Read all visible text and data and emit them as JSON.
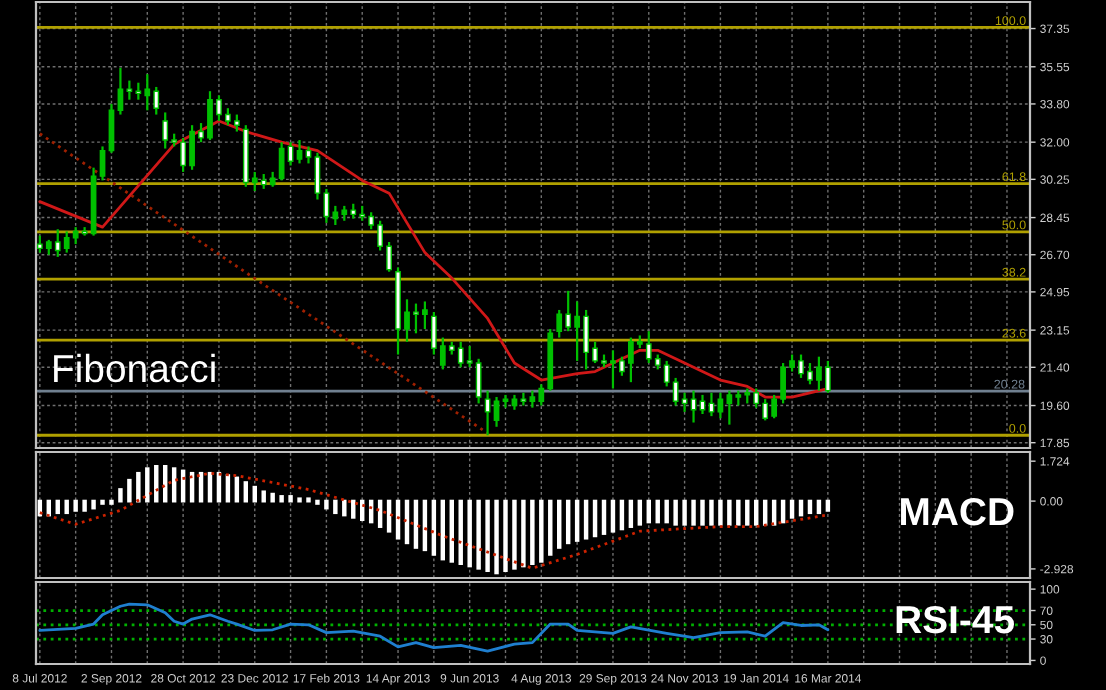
{
  "chart_data": [
    {
      "type": "candlestick",
      "annotations": [
        "Fibonacci",
        {
          "text": "100.0",
          "x": "2014-08-18",
          "y": 37.4
        },
        {
          "text": "61.8",
          "x": "2014-08-18",
          "y": 30.05
        },
        {
          "text": "50.0",
          "x": "2014-08-18",
          "y": 27.78
        },
        {
          "text": "38.2",
          "x": "2014-08-18",
          "y": 25.55
        },
        {
          "text": "23.6",
          "x": "2014-08-18",
          "y": 22.68
        },
        {
          "text": "0.0",
          "x": "2014-08-18",
          "y": 18.2
        }
      ],
      "x": [
        "2012-07-08",
        "2012-07-15",
        "2012-07-22",
        "2012-07-29",
        "2012-08-05",
        "2012-08-12",
        "2012-08-19",
        "2012-08-26",
        "2012-09-02",
        "2012-09-09",
        "2012-09-16",
        "2012-09-23",
        "2012-09-30",
        "2012-10-07",
        "2012-10-14",
        "2012-10-21",
        "2012-10-28",
        "2012-11-04",
        "2012-11-11",
        "2012-11-18",
        "2012-11-25",
        "2012-12-02",
        "2012-12-09",
        "2012-12-16",
        "2012-12-23",
        "2012-12-30",
        "2013-01-06",
        "2013-01-13",
        "2013-01-20",
        "2013-01-27",
        "2013-02-03",
        "2013-02-10",
        "2013-02-17",
        "2013-02-24",
        "2013-03-03",
        "2013-03-10",
        "2013-03-17",
        "2013-03-24",
        "2013-03-31",
        "2013-04-07",
        "2013-04-14",
        "2013-04-21",
        "2013-04-28",
        "2013-05-05",
        "2013-05-12",
        "2013-05-19",
        "2013-05-26",
        "2013-06-02",
        "2013-06-09",
        "2013-06-16",
        "2013-06-23",
        "2013-06-30",
        "2013-07-07",
        "2013-07-14",
        "2013-07-21",
        "2013-07-28",
        "2013-08-04",
        "2013-08-11",
        "2013-08-18",
        "2013-08-25",
        "2013-09-01",
        "2013-09-08",
        "2013-09-15",
        "2013-09-22",
        "2013-09-29",
        "2013-10-06",
        "2013-10-13",
        "2013-10-20",
        "2013-10-27",
        "2013-11-03",
        "2013-11-10",
        "2013-11-17",
        "2013-11-24",
        "2013-12-01",
        "2013-12-08",
        "2013-12-15",
        "2013-12-22",
        "2013-12-29",
        "2014-01-05",
        "2014-01-12",
        "2014-01-19",
        "2014-01-26",
        "2014-02-02",
        "2014-02-09",
        "2014-02-16",
        "2014-02-23",
        "2014-03-02",
        "2014-03-09",
        "2014-03-16"
      ],
      "ohlc": [
        [
          27.2,
          27.6,
          26.8,
          27.0
        ],
        [
          27.0,
          27.4,
          26.7,
          27.3
        ],
        [
          27.3,
          27.9,
          26.6,
          26.9
        ],
        [
          27.0,
          27.8,
          26.8,
          27.5
        ],
        [
          27.5,
          28.0,
          27.2,
          27.8
        ],
        [
          27.8,
          28.0,
          27.6,
          27.7
        ],
        [
          27.7,
          30.8,
          27.6,
          30.4
        ],
        [
          30.4,
          31.8,
          30.2,
          31.6
        ],
        [
          31.6,
          33.8,
          31.5,
          33.5
        ],
        [
          33.5,
          35.5,
          33.3,
          34.5
        ],
        [
          34.5,
          34.9,
          34.0,
          34.4
        ],
        [
          34.4,
          34.8,
          34.0,
          34.3
        ],
        [
          34.2,
          35.2,
          33.5,
          34.5
        ],
        [
          34.4,
          34.6,
          33.3,
          33.6
        ],
        [
          33.0,
          33.4,
          31.7,
          32.1
        ],
        [
          32.1,
          32.4,
          31.8,
          32.0
        ],
        [
          32.0,
          32.2,
          30.6,
          30.9
        ],
        [
          30.9,
          32.8,
          30.7,
          32.5
        ],
        [
          32.5,
          32.9,
          32.0,
          32.2
        ],
        [
          32.2,
          34.4,
          32.1,
          34.0
        ],
        [
          34.0,
          34.2,
          33.0,
          33.3
        ],
        [
          33.3,
          33.6,
          32.8,
          33.0
        ],
        [
          33.0,
          33.3,
          32.5,
          32.8
        ],
        [
          32.6,
          32.8,
          29.9,
          30.1
        ],
        [
          30.1,
          30.6,
          29.7,
          30.3
        ],
        [
          30.2,
          30.5,
          29.8,
          30.0
        ],
        [
          30.0,
          30.6,
          29.9,
          30.3
        ],
        [
          30.3,
          32.0,
          30.2,
          31.7
        ],
        [
          31.8,
          32.0,
          30.9,
          31.1
        ],
        [
          31.2,
          32.1,
          31.0,
          31.6
        ],
        [
          31.6,
          31.8,
          31.0,
          31.3
        ],
        [
          31.3,
          31.5,
          29.3,
          29.6
        ],
        [
          29.6,
          29.8,
          28.2,
          28.5
        ],
        [
          28.4,
          29.0,
          28.1,
          28.7
        ],
        [
          28.6,
          29.0,
          28.3,
          28.8
        ],
        [
          28.8,
          29.1,
          28.4,
          28.6
        ],
        [
          28.6,
          29.0,
          28.3,
          28.5
        ],
        [
          28.5,
          28.7,
          27.9,
          28.1
        ],
        [
          28.1,
          28.3,
          26.9,
          27.1
        ],
        [
          27.1,
          27.3,
          25.9,
          26.0
        ],
        [
          25.9,
          26.1,
          22.0,
          23.2
        ],
        [
          23.2,
          24.6,
          22.6,
          24.0
        ],
        [
          24.0,
          24.4,
          23.0,
          23.9
        ],
        [
          23.9,
          24.5,
          23.2,
          24.1
        ],
        [
          23.8,
          24.0,
          22.0,
          22.3
        ],
        [
          21.5,
          22.8,
          21.3,
          22.4
        ],
        [
          22.4,
          22.6,
          22.0,
          22.2
        ],
        [
          22.3,
          22.6,
          21.4,
          21.6
        ],
        [
          21.7,
          22.4,
          21.4,
          21.6
        ],
        [
          21.6,
          21.8,
          19.7,
          20.0
        ],
        [
          19.9,
          20.3,
          18.2,
          19.3
        ],
        [
          18.9,
          20.0,
          18.6,
          19.8
        ],
        [
          19.8,
          20.1,
          19.5,
          19.9
        ],
        [
          19.6,
          20.1,
          19.4,
          19.9
        ],
        [
          19.9,
          20.2,
          19.6,
          19.8
        ],
        [
          19.8,
          20.3,
          19.5,
          20.0
        ],
        [
          19.8,
          20.6,
          19.6,
          20.4
        ],
        [
          20.4,
          23.2,
          20.3,
          23.0
        ],
        [
          23.1,
          24.1,
          22.8,
          23.9
        ],
        [
          23.9,
          25.0,
          23.1,
          23.3
        ],
        [
          23.3,
          24.5,
          21.7,
          23.8
        ],
        [
          23.8,
          24.1,
          21.3,
          22.1
        ],
        [
          22.3,
          22.6,
          21.6,
          21.7
        ],
        [
          21.7,
          22.0,
          21.4,
          21.6
        ],
        [
          21.6,
          22.2,
          20.4,
          21.7
        ],
        [
          21.7,
          21.9,
          21.0,
          21.2
        ],
        [
          21.6,
          22.8,
          20.7,
          22.6
        ],
        [
          22.5,
          22.9,
          22.3,
          22.6
        ],
        [
          22.5,
          23.1,
          21.6,
          21.8
        ],
        [
          21.8,
          22.0,
          21.3,
          21.5
        ],
        [
          21.5,
          21.7,
          20.5,
          20.7
        ],
        [
          20.7,
          20.9,
          19.6,
          19.8
        ],
        [
          19.9,
          20.2,
          19.3,
          19.7
        ],
        [
          19.9,
          20.3,
          18.8,
          19.4
        ],
        [
          19.8,
          20.1,
          19.2,
          19.4
        ],
        [
          19.7,
          20.2,
          19.1,
          19.3
        ],
        [
          19.3,
          20.2,
          19.0,
          19.9
        ],
        [
          19.7,
          20.3,
          18.7,
          20.1
        ],
        [
          20.0,
          20.3,
          19.6,
          20.1
        ],
        [
          20.1,
          20.4,
          19.7,
          20.2
        ],
        [
          20.2,
          20.4,
          19.5,
          19.7
        ],
        [
          19.7,
          19.9,
          18.9,
          19.0
        ],
        [
          19.1,
          20.1,
          19.0,
          19.9
        ],
        [
          19.9,
          21.6,
          19.7,
          21.4
        ],
        [
          21.4,
          22.0,
          21.2,
          21.7
        ],
        [
          21.7,
          22.0,
          20.9,
          21.1
        ],
        [
          21.2,
          21.6,
          20.6,
          20.8
        ],
        [
          20.8,
          21.9,
          20.3,
          21.4
        ],
        [
          21.4,
          21.7,
          20.2,
          20.3
        ]
      ],
      "colors": [
        "#ffffff",
        "#00c000",
        "#ffffff",
        "#00c000",
        "#00c000",
        "#ffffff",
        "#00c000",
        "#00c000",
        "#00c000",
        "#00c000",
        "#ffffff",
        "#ffffff",
        "#00c000",
        "#ffffff",
        "#ffffff",
        "#ffffff",
        "#ffffff",
        "#00c000",
        "#ffffff",
        "#00c000",
        "#ffffff",
        "#ffffff",
        "#ffffff",
        "#ffffff",
        "#00c000",
        "#ffffff",
        "#00c000",
        "#00c000",
        "#ffffff",
        "#00c000",
        "#ffffff",
        "#ffffff",
        "#ffffff",
        "#00c000",
        "#00c000",
        "#ffffff",
        "#ffffff",
        "#ffffff",
        "#ffffff",
        "#ffffff",
        "#ffffff",
        "#00c000",
        "#ffffff",
        "#00c000",
        "#ffffff",
        "#00c000",
        "#ffffff",
        "#ffffff",
        "#ffffff",
        "#ffffff",
        "#ffffff",
        "#00c000",
        "#00c000",
        "#00c000",
        "#ffffff",
        "#00c000",
        "#00c000",
        "#00c000",
        "#00c000",
        "#ffffff",
        "#00c000",
        "#ffffff",
        "#ffffff",
        "#ffffff",
        "#00c000",
        "#ffffff",
        "#00c000",
        "#00c000",
        "#ffffff",
        "#ffffff",
        "#ffffff",
        "#ffffff",
        "#ffffff",
        "#ffffff",
        "#ffffff",
        "#ffffff",
        "#00c000",
        "#00c000",
        "#00c000",
        "#00c000",
        "#ffffff",
        "#ffffff",
        "#00c000",
        "#00c000",
        "#00c000",
        "#ffffff",
        "#ffffff",
        "#00c000",
        "#ffffff"
      ],
      "series": [
        {
          "type": "line",
          "color": "#d01818",
          "line_style": "solid",
          "x": [
            "2012-07-08",
            "2012-08-26",
            "2012-10-21",
            "2012-11-25",
            "2012-12-16",
            "2013-01-13",
            "2013-02-10",
            "2013-03-17",
            "2013-04-07",
            "2013-05-05",
            "2013-05-26",
            "2013-06-23",
            "2013-07-14",
            "2013-08-04",
            "2013-09-01",
            "2013-09-15",
            "2013-10-20",
            "2013-11-03",
            "2013-11-24",
            "2013-12-22",
            "2014-01-12",
            "2014-01-26",
            "2014-02-16",
            "2014-03-16"
          ],
          "values": [
            29.2,
            28.0,
            31.9,
            33.0,
            32.5,
            32.0,
            31.6,
            30.2,
            29.6,
            26.8,
            25.6,
            23.7,
            21.6,
            20.8,
            21.1,
            21.2,
            22.2,
            22.2,
            21.6,
            20.8,
            20.5,
            20.0,
            20.0,
            20.4
          ]
        },
        {
          "type": "line",
          "color": "#a02000",
          "line_style": "dotted",
          "x": [
            "2012-07-08",
            "2012-12-30",
            "2013-06-23"
          ],
          "values": [
            32.4,
            25.3,
            18.3
          ]
        }
      ],
      "ref_lines": [
        {
          "axis": "y",
          "value": 37.4,
          "color": "#b0a000"
        },
        {
          "axis": "y",
          "value": 30.05,
          "color": "#b0a000"
        },
        {
          "axis": "y",
          "value": 27.78,
          "color": "#b0a000"
        },
        {
          "axis": "y",
          "value": 25.55,
          "color": "#b0a000"
        },
        {
          "axis": "y",
          "value": 22.68,
          "color": "#b0a000"
        },
        {
          "axis": "y",
          "value": 18.2,
          "color": "#b0a000"
        },
        {
          "axis": "y",
          "value": 20.28,
          "label": "20.28",
          "color": "#708090"
        }
      ],
      "xlim": [
        "2012-07-05",
        "2014-08-21"
      ],
      "xticks": [
        {
          "value": "2012-07-08",
          "label": null
        },
        {
          "value": "2012-08-05",
          "label": null
        },
        {
          "value": "2012-09-02",
          "label": null
        },
        {
          "value": "2012-09-30",
          "label": null
        },
        {
          "value": "2012-10-28",
          "label": null
        },
        {
          "value": "2012-11-25",
          "label": null
        },
        {
          "value": "2012-12-23",
          "label": null
        },
        {
          "value": "2013-01-20",
          "label": null
        },
        {
          "value": "2013-02-17",
          "label": null
        },
        {
          "value": "2013-03-17",
          "label": null
        },
        {
          "value": "2013-04-14",
          "label": null
        },
        {
          "value": "2013-05-12",
          "label": null
        },
        {
          "value": "2013-06-09",
          "label": null
        },
        {
          "value": "2013-07-07",
          "label": null
        },
        {
          "value": "2013-08-04",
          "label": null
        },
        {
          "value": "2013-09-01",
          "label": null
        },
        {
          "value": "2013-09-29",
          "label": null
        },
        {
          "value": "2013-10-27",
          "label": null
        },
        {
          "value": "2013-11-24",
          "label": null
        },
        {
          "value": "2013-12-22",
          "label": null
        },
        {
          "value": "2014-01-19",
          "label": null
        },
        {
          "value": "2014-02-16",
          "label": null
        },
        {
          "value": "2014-03-16",
          "label": null
        },
        {
          "value": "2014-04-13",
          "label": null
        },
        {
          "value": "2014-05-11",
          "label": null
        },
        {
          "value": "2014-06-08",
          "label": null
        },
        {
          "value": "2014-07-06",
          "label": null
        },
        {
          "value": "2014-08-03",
          "label": null
        }
      ],
      "ylim": [
        17.6,
        38.6
      ],
      "yticks": [
        37.35,
        35.55,
        {
          "value": 33.8,
          "label": "33.80"
        },
        {
          "value": 32.0,
          "label": "32.00"
        },
        30.25,
        28.45,
        {
          "value": 26.7,
          "label": "26.70"
        },
        24.95,
        23.15,
        {
          "value": 21.4,
          "label": "21.40"
        },
        {
          "value": 19.6,
          "label": "19.60"
        },
        17.85
      ],
      "grid": true,
      "tick_labels": "y"
    },
    {
      "type": "bar",
      "annotations": [
        "MACD"
      ],
      "x": [
        "2012-07-08",
        "2012-07-15",
        "2012-07-22",
        "2012-07-29",
        "2012-08-05",
        "2012-08-12",
        "2012-08-19",
        "2012-08-26",
        "2012-09-02",
        "2012-09-09",
        "2012-09-16",
        "2012-09-23",
        "2012-09-30",
        "2012-10-07",
        "2012-10-14",
        "2012-10-21",
        "2012-10-28",
        "2012-11-04",
        "2012-11-11",
        "2012-11-18",
        "2012-11-25",
        "2012-12-02",
        "2012-12-09",
        "2012-12-16",
        "2012-12-23",
        "2012-12-30",
        "2013-01-06",
        "2013-01-13",
        "2013-01-20",
        "2013-01-27",
        "2013-02-03",
        "2013-02-10",
        "2013-02-17",
        "2013-02-24",
        "2013-03-03",
        "2013-03-10",
        "2013-03-17",
        "2013-03-24",
        "2013-03-31",
        "2013-04-07",
        "2013-04-14",
        "2013-04-21",
        "2013-04-28",
        "2013-05-05",
        "2013-05-12",
        "2013-05-19",
        "2013-05-26",
        "2013-06-02",
        "2013-06-09",
        "2013-06-16",
        "2013-06-23",
        "2013-06-30",
        "2013-07-07",
        "2013-07-14",
        "2013-07-21",
        "2013-07-28",
        "2013-08-04",
        "2013-08-11",
        "2013-08-18",
        "2013-08-25",
        "2013-09-01",
        "2013-09-08",
        "2013-09-15",
        "2013-09-22",
        "2013-09-29",
        "2013-10-06",
        "2013-10-13",
        "2013-10-20",
        "2013-10-27",
        "2013-11-03",
        "2013-11-10",
        "2013-11-17",
        "2013-11-24",
        "2013-12-01",
        "2013-12-08",
        "2013-12-15",
        "2013-12-22",
        "2013-12-29",
        "2014-01-05",
        "2014-01-12",
        "2014-01-19",
        "2014-01-26",
        "2014-02-02",
        "2014-02-09",
        "2014-02-16",
        "2014-02-23",
        "2014-03-02",
        "2014-03-09",
        "2014-03-16"
      ],
      "series": [
        {
          "type": "bar",
          "color": "#c8c8c8",
          "values": [
            -0.6,
            -0.6,
            -0.5,
            -0.5,
            -0.4,
            -0.4,
            -0.3,
            -0.1,
            -0.1,
            0.5,
            0.9,
            1.2,
            1.4,
            1.5,
            1.5,
            1.4,
            1.3,
            1.2,
            1.2,
            1.2,
            1.2,
            1.1,
            1.0,
            0.8,
            0.6,
            0.4,
            0.3,
            0.2,
            0.2,
            0.1,
            0.1,
            -0.1,
            -0.3,
            -0.5,
            -0.6,
            -0.7,
            -0.8,
            -0.9,
            -1.1,
            -1.3,
            -1.6,
            -1.8,
            -2.0,
            -2.1,
            -2.3,
            -2.5,
            -2.6,
            -2.7,
            -2.8,
            -2.9,
            -3.0,
            -3.1,
            -3.0,
            -2.9,
            -2.8,
            -2.7,
            -2.6,
            -2.3,
            -2.0,
            -1.8,
            -1.7,
            -1.6,
            -1.5,
            -1.4,
            -1.3,
            -1.2,
            -1.1,
            -1.0,
            -0.9,
            -0.9,
            -0.9,
            -1.0,
            -1.0,
            -1.0,
            -1.0,
            -1.0,
            -1.0,
            -1.0,
            -1.0,
            -1.0,
            -1.0,
            -1.0,
            -1.0,
            -0.9,
            -0.7,
            -0.6,
            -0.5,
            -0.5,
            -0.4
          ]
        },
        {
          "type": "line",
          "color": "#cc2200",
          "line_style": "dotted",
          "x": [
            "2012-07-08",
            "2012-08-05",
            "2012-09-09",
            "2012-10-21",
            "2012-11-18",
            "2012-12-09",
            "2013-02-03",
            "2013-03-31",
            "2013-05-19",
            "2013-07-28",
            "2013-09-01",
            "2013-10-20",
            "2013-12-22",
            "2014-01-19",
            "2014-03-16"
          ],
          "values": [
            -0.5,
            -1.0,
            -0.4,
            0.9,
            1.2,
            1.1,
            0.5,
            -0.4,
            -1.5,
            -2.9,
            -2.3,
            -1.3,
            -1.1,
            -1.1,
            -0.6
          ]
        }
      ],
      "xlim": [
        "2012-07-05",
        "2014-08-21"
      ],
      "xticks": [
        {
          "value": "2012-07-08",
          "label": null
        },
        {
          "value": "2012-08-05",
          "label": null
        },
        {
          "value": "2012-09-02",
          "label": null
        },
        {
          "value": "2012-09-30",
          "label": null
        },
        {
          "value": "2012-10-28",
          "label": null
        },
        {
          "value": "2012-11-25",
          "label": null
        },
        {
          "value": "2012-12-23",
          "label": null
        },
        {
          "value": "2013-01-20",
          "label": null
        },
        {
          "value": "2013-02-17",
          "label": null
        },
        {
          "value": "2013-03-17",
          "label": null
        },
        {
          "value": "2013-04-14",
          "label": null
        },
        {
          "value": "2013-05-12",
          "label": null
        },
        {
          "value": "2013-06-09",
          "label": null
        },
        {
          "value": "2013-07-07",
          "label": null
        },
        {
          "value": "2013-08-04",
          "label": null
        },
        {
          "value": "2013-09-01",
          "label": null
        },
        {
          "value": "2013-09-29",
          "label": null
        },
        {
          "value": "2013-10-27",
          "label": null
        },
        {
          "value": "2013-11-24",
          "label": null
        },
        {
          "value": "2013-12-22",
          "label": null
        },
        {
          "value": "2014-01-19",
          "label": null
        },
        {
          "value": "2014-02-16",
          "label": null
        },
        {
          "value": "2014-03-16",
          "label": null
        },
        {
          "value": "2014-04-13",
          "label": null
        },
        {
          "value": "2014-05-11",
          "label": null
        },
        {
          "value": "2014-06-08",
          "label": null
        },
        {
          "value": "2014-07-06",
          "label": null
        },
        {
          "value": "2014-08-03",
          "label": null
        }
      ],
      "ylim": [
        -3.32,
        2.12
      ],
      "yticks": [
        1.724,
        {
          "value": 0,
          "label": "0.00"
        },
        -2.928
      ],
      "grid": "x",
      "tick_labels": "y"
    },
    {
      "type": "line",
      "annotations": [
        "RSI-45"
      ],
      "series": [
        {
          "type": "line",
          "color": "#1f7fd0",
          "line_style": "solid",
          "x": [
            "2012-07-08",
            "2012-08-05",
            "2012-08-19",
            "2012-08-26",
            "2012-09-09",
            "2012-09-16",
            "2012-09-30",
            "2012-10-14",
            "2012-10-21",
            "2012-10-28",
            "2012-11-04",
            "2012-11-18",
            "2012-12-02",
            "2012-12-09",
            "2012-12-23",
            "2013-01-06",
            "2013-01-20",
            "2013-02-03",
            "2013-02-17",
            "2013-03-10",
            "2013-03-31",
            "2013-04-14",
            "2013-04-28",
            "2013-05-12",
            "2013-06-02",
            "2013-06-23",
            "2013-07-14",
            "2013-07-28",
            "2013-08-11",
            "2013-08-25",
            "2013-09-01",
            "2013-09-29",
            "2013-10-13",
            "2013-11-10",
            "2013-12-01",
            "2013-12-22",
            "2014-01-12",
            "2014-01-26",
            "2014-02-09",
            "2014-02-23",
            "2014-03-09",
            "2014-03-16"
          ],
          "values": [
            42,
            45,
            51,
            64,
            76,
            79,
            78,
            67,
            55,
            51,
            58,
            64,
            55,
            51,
            42,
            43,
            51,
            50,
            39,
            41,
            34,
            19,
            25,
            18,
            21,
            13,
            23,
            25,
            51,
            51,
            42,
            38,
            47,
            38,
            32,
            39,
            40,
            34,
            53,
            49,
            50,
            43
          ]
        }
      ],
      "ref_lines": [
        {
          "axis": "y",
          "value": 70,
          "color": "#00b000",
          "line_style": "dotted"
        },
        {
          "axis": "y",
          "value": 50,
          "color": "#00b000",
          "line_style": "dotted"
        },
        {
          "axis": "y",
          "value": 30,
          "color": "#00b000",
          "line_style": "dotted"
        }
      ],
      "xlim": [
        "2012-07-05",
        "2014-08-21"
      ],
      "xticks": [
        {
          "value": "2012-07-08",
          "label": "8 Jul 2012"
        },
        {
          "value": "2012-08-05",
          "label": null
        },
        {
          "value": "2012-09-02",
          "label": "2 Sep 2012"
        },
        {
          "value": "2012-09-30",
          "label": null
        },
        {
          "value": "2012-10-28",
          "label": "28 Oct 2012"
        },
        {
          "value": "2012-11-25",
          "label": null
        },
        {
          "value": "2012-12-23",
          "label": "23 Dec 2012"
        },
        {
          "value": "2013-01-20",
          "label": null
        },
        {
          "value": "2013-02-17",
          "label": "17 Feb 2013"
        },
        {
          "value": "2013-03-17",
          "label": null
        },
        {
          "value": "2013-04-14",
          "label": "14 Apr 2013"
        },
        {
          "value": "2013-05-12",
          "label": null
        },
        {
          "value": "2013-06-09",
          "label": "9 Jun 2013"
        },
        {
          "value": "2013-07-07",
          "label": null
        },
        {
          "value": "2013-08-04",
          "label": "4 Aug 2013"
        },
        {
          "value": "2013-09-01",
          "label": null
        },
        {
          "value": "2013-09-29",
          "label": "29 Sep 2013"
        },
        {
          "value": "2013-10-27",
          "label": null
        },
        {
          "value": "2013-11-24",
          "label": "24 Nov 2013"
        },
        {
          "value": "2013-12-22",
          "label": null
        },
        {
          "value": "2014-01-19",
          "label": "19 Jan 2014"
        },
        {
          "value": "2014-02-16",
          "label": null
        },
        {
          "value": "2014-03-16",
          "label": "16 Mar 2014"
        },
        {
          "value": "2014-04-13",
          "label": null
        },
        {
          "value": "2014-05-11",
          "label": null
        },
        {
          "value": "2014-06-08",
          "label": null
        },
        {
          "value": "2014-07-06",
          "label": null
        },
        {
          "value": "2014-08-03",
          "label": null
        }
      ],
      "ylim": [
        -5,
        110
      ],
      "yticks": [
        100,
        70,
        50,
        30,
        0
      ],
      "grid": "x"
    }
  ]
}
